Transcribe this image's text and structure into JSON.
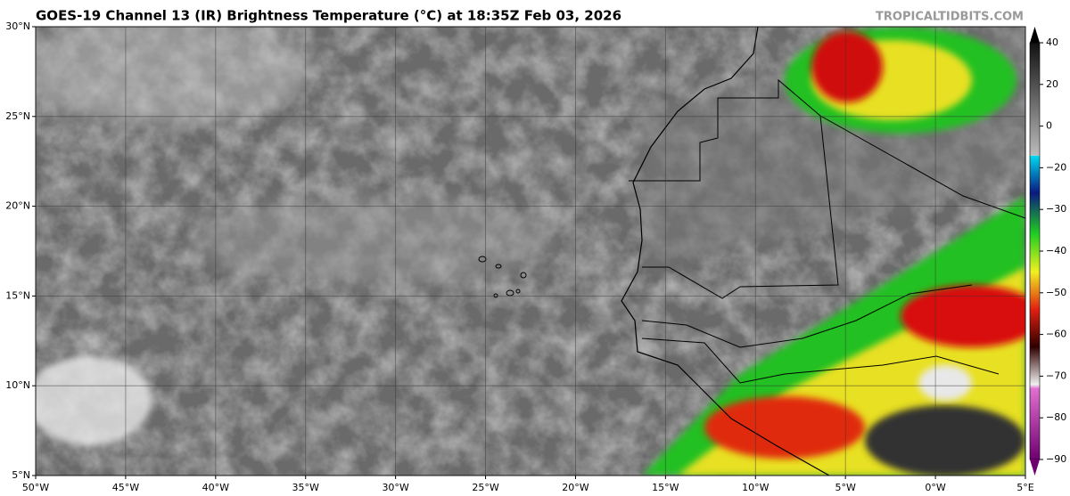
{
  "map": {
    "title": "GOES-19 Channel 13 (IR) Brightness Temperature (°C) at 18:35Z Feb 03, 2026",
    "credit": "TROPICALTIDBITS.COM",
    "lon_range": [
      -50,
      5
    ],
    "lat_range": [
      5,
      30
    ],
    "lon_ticks": [
      {
        "value": -50,
        "label": "50°W"
      },
      {
        "value": -45,
        "label": "45°W"
      },
      {
        "value": -40,
        "label": "40°W"
      },
      {
        "value": -35,
        "label": "35°W"
      },
      {
        "value": -30,
        "label": "30°W"
      },
      {
        "value": -25,
        "label": "25°W"
      },
      {
        "value": -20,
        "label": "20°W"
      },
      {
        "value": -15,
        "label": "15°W"
      },
      {
        "value": -10,
        "label": "10°W"
      },
      {
        "value": -5,
        "label": "5°W"
      },
      {
        "value": 0,
        "label": "0°W"
      },
      {
        "value": 5,
        "label": "5°E"
      }
    ],
    "lat_ticks": [
      {
        "value": 30,
        "label": "30°N"
      },
      {
        "value": 25,
        "label": "25°N"
      },
      {
        "value": 20,
        "label": "20°N"
      },
      {
        "value": 15,
        "label": "15°N"
      },
      {
        "value": 10,
        "label": "10°N"
      },
      {
        "value": 5,
        "label": "5°N"
      }
    ],
    "colorbar_ticks": [
      40,
      20,
      0,
      {
        "value": -20,
        "label": "−20"
      },
      {
        "value": -30,
        "label": "−30"
      },
      {
        "value": -40,
        "label": "−40"
      },
      {
        "value": -50,
        "label": "−50"
      },
      {
        "value": -60,
        "label": "−60"
      },
      {
        "value": -70,
        "label": "−70"
      },
      {
        "value": -80,
        "label": "−80"
      },
      {
        "value": -90,
        "label": "−90"
      }
    ]
  }
}
